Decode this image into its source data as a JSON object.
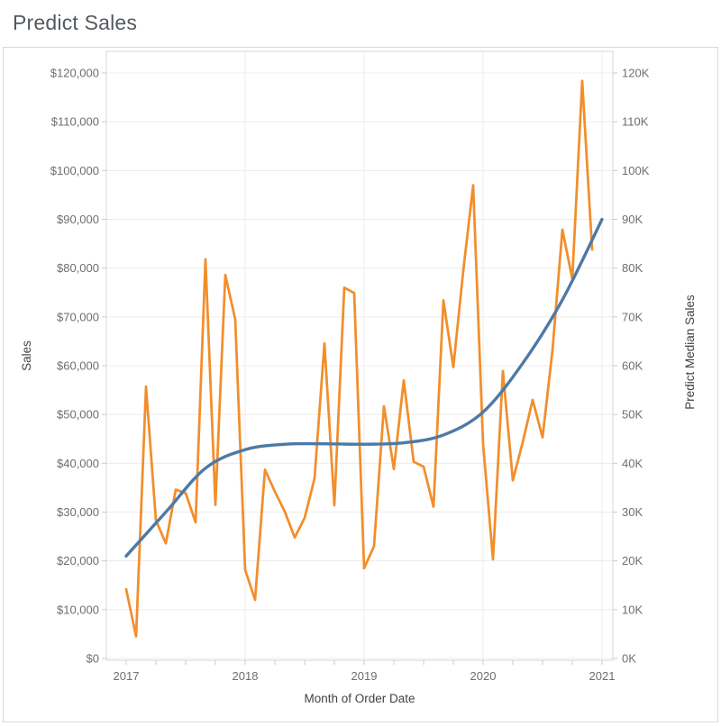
{
  "title": "Predict Sales",
  "chart_data": {
    "type": "line",
    "title": "Predict Sales",
    "grid": true,
    "legend_position": "none",
    "x_axis": {
      "title": "Month of Order Date",
      "tick_labels": [
        "2017",
        "2018",
        "2019",
        "2020",
        "2021"
      ],
      "start_month": "2017-01",
      "end_month": "2021-01",
      "minor_tick_interval_months": 3
    },
    "y_left": {
      "title": "Sales",
      "lim": [
        0,
        125000
      ],
      "tick_values": [
        0,
        10000,
        20000,
        30000,
        40000,
        50000,
        60000,
        70000,
        80000,
        90000,
        100000,
        110000,
        120000
      ],
      "tick_labels": [
        "$0",
        "$10,000",
        "$20,000",
        "$30,000",
        "$40,000",
        "$50,000",
        "$60,000",
        "$70,000",
        "$80,000",
        "$90,000",
        "$100,000",
        "$110,000",
        "$120,000"
      ]
    },
    "y_right": {
      "title": "Predict Median Sales",
      "lim": [
        0,
        125000
      ],
      "tick_values": [
        0,
        10000,
        20000,
        30000,
        40000,
        50000,
        60000,
        70000,
        80000,
        90000,
        100000,
        110000,
        120000
      ],
      "tick_labels": [
        "0K",
        "10K",
        "20K",
        "30K",
        "40K",
        "50K",
        "60K",
        "70K",
        "80K",
        "90K",
        "100K",
        "110K",
        "120K"
      ]
    },
    "series": [
      {
        "name": "Sales",
        "axis": "left",
        "color": "#F28E2B",
        "line_width": 2.75,
        "style": "jagged-monthly",
        "start_month": "2017-01",
        "values": [
          14200,
          4500,
          55700,
          28300,
          23600,
          34600,
          33900,
          27900,
          81800,
          31500,
          78600,
          69500,
          18200,
          12000,
          38700,
          34200,
          30100,
          24800,
          28800,
          36900,
          64600,
          31400,
          76000,
          74900,
          18500,
          23000,
          51700,
          38800,
          57000,
          40300,
          39300,
          31100,
          73400,
          59700,
          79400,
          97000,
          44000,
          20300,
          58900,
          36500,
          44300,
          53000,
          45300,
          63100,
          87900,
          77800,
          118400,
          83800
        ]
      },
      {
        "name": "Predict Median Sales",
        "axis": "right",
        "color": "#4E79A7",
        "line_width": 3.4,
        "style": "smooth",
        "points_month_value": [
          [
            0,
            21000
          ],
          [
            4,
            30000
          ],
          [
            8,
            39000
          ],
          [
            12,
            42800
          ],
          [
            16,
            43900
          ],
          [
            20,
            44000
          ],
          [
            24,
            43900
          ],
          [
            28,
            44200
          ],
          [
            32,
            45800
          ],
          [
            36,
            50500
          ],
          [
            40,
            60500
          ],
          [
            44,
            73500
          ],
          [
            48,
            90000
          ]
        ]
      }
    ],
    "colors": {
      "sales_line": "#F28E2B",
      "predict_line": "#4E79A7",
      "gridline": "#ececec",
      "plot_border": "#d7d7d7",
      "tick_mark": "#c9c9c9",
      "tick_text": "#6e6e6e",
      "axis_title_text": "#424242",
      "title_text": "#54595e"
    }
  }
}
